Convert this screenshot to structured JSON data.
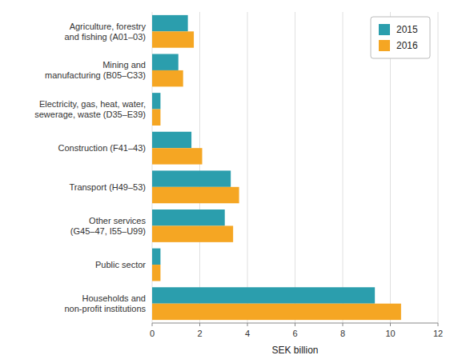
{
  "chart_data": {
    "type": "bar",
    "orientation": "horizontal",
    "categories": [
      "Agriculture, forestry\nand fishing (A01–03)",
      "Mining and\nmanufacturing (B05–C33)",
      "Electricity, gas, heat, water,\nsewerage, waste (D35–E39)",
      "Construction (F41–43)",
      "Transport (H49–53)",
      "Other services\n(G45–47, I55–U99)",
      "Public sector",
      "Households and\nnon-profit institutions"
    ],
    "series": [
      {
        "name": "2015",
        "color": "#2B9EAD",
        "values": [
          1.5,
          1.1,
          0.35,
          1.65,
          3.3,
          3.05,
          0.35,
          9.35
        ]
      },
      {
        "name": "2016",
        "color": "#F5A623",
        "values": [
          1.75,
          1.3,
          0.35,
          2.1,
          3.65,
          3.4,
          0.35,
          10.45
        ]
      }
    ],
    "xlabel": "SEK billion",
    "xlim": [
      0,
      12
    ],
    "xticks": [
      0,
      2,
      4,
      6,
      8,
      10,
      12
    ],
    "grid": true,
    "legend": "upper right"
  }
}
